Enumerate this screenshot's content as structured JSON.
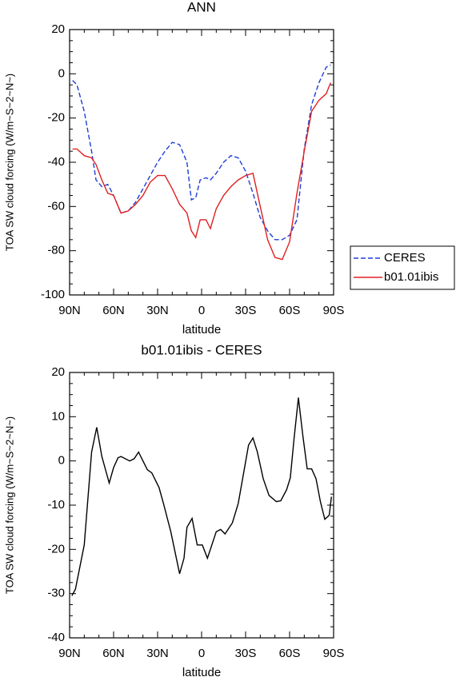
{
  "chart_data": [
    {
      "type": "line",
      "title": "ANN",
      "xlabel": "latitude",
      "ylabel": "TOA SW cloud forcing (W/m~S~2~N~)",
      "x": [
        88,
        85,
        80,
        75,
        72,
        68,
        64,
        60,
        55,
        50,
        45,
        40,
        35,
        30,
        25,
        20,
        15,
        10,
        7,
        4,
        1,
        -3,
        -6,
        -10,
        -15,
        -20,
        -25,
        -30,
        -35,
        -40,
        -45,
        -50,
        -55,
        -60,
        -65,
        -70,
        -75,
        -80,
        -85,
        -88
      ],
      "series": [
        {
          "name": "CERES",
          "color": "#1f3fd6",
          "dash": "dashed",
          "values": [
            -3,
            -5,
            -17,
            -35,
            -48,
            -51,
            -50,
            -55,
            -63,
            -62,
            -58,
            -52,
            -46,
            -40,
            -35,
            -31,
            -32,
            -40,
            -57,
            -56,
            -48,
            -47,
            -48,
            -45,
            -40,
            -37,
            -38,
            -44,
            -54,
            -65,
            -71,
            -75,
            -75,
            -73,
            -66,
            -34,
            -14,
            -4,
            3,
            4
          ]
        },
        {
          "name": "b01.01ibis",
          "color": "#e02020",
          "dash": "solid",
          "values": [
            -34,
            -34,
            -37,
            -38,
            -41,
            -48,
            -54,
            -55,
            -63,
            -62,
            -59,
            -55,
            -49,
            -46,
            -46,
            -52,
            -59,
            -63,
            -71,
            -74,
            -66,
            -66,
            -70,
            -61,
            -55,
            -51,
            -48,
            -46,
            -45,
            -60,
            -75,
            -83,
            -84,
            -76,
            -54,
            -35,
            -17,
            -12,
            -9,
            -4
          ]
        }
      ],
      "xlim": [
        90,
        -90
      ],
      "xticks": [
        {
          "value": 90,
          "label": "90N"
        },
        {
          "value": 60,
          "label": "60N"
        },
        {
          "value": 30,
          "label": "30N"
        },
        0,
        {
          "value": -30,
          "label": "30S"
        },
        {
          "value": -60,
          "label": "60S"
        },
        {
          "value": -90,
          "label": "90S"
        }
      ],
      "ylim": [
        -100,
        20
      ],
      "yticks": [
        20,
        0,
        -20,
        -40,
        -60,
        -80,
        -100
      ],
      "legend": "right"
    },
    {
      "type": "line",
      "title": "b01.01ibis - CERES",
      "xlabel": "latitude",
      "ylabel": "TOA SW cloud forcing (W/m~S~2~N~)",
      "x": [
        88.5,
        86,
        80,
        75,
        71.5,
        68,
        63,
        60,
        57,
        55,
        49,
        46,
        43,
        40,
        37,
        34,
        29,
        26,
        21,
        15,
        12,
        10,
        6.5,
        3,
        -0.5,
        -4,
        -10,
        -13,
        -16,
        -21,
        -25,
        -28,
        -32,
        -35,
        -38,
        -42,
        -46,
        -51,
        -54,
        -58,
        -60.5,
        -63,
        -66,
        -69,
        -72,
        -75,
        -78,
        -81,
        -84,
        -87,
        -88.5
      ],
      "series": [
        {
          "color": "#000000",
          "dash": "solid",
          "values": [
            -30.5,
            -29,
            -19,
            2,
            7.6,
            1,
            -5,
            -1.5,
            0.7,
            1,
            0,
            0.5,
            2,
            0,
            -2,
            -2.7,
            -6,
            -9.6,
            -16,
            -25.5,
            -22,
            -15,
            -13,
            -19,
            -19,
            -22,
            -16,
            -15.5,
            -16.5,
            -14,
            -9.6,
            -4,
            3.6,
            5.2,
            2,
            -4,
            -7.8,
            -9.2,
            -9,
            -6.5,
            -3.8,
            4.9,
            14.3,
            5.8,
            -1.8,
            -1.8,
            -4,
            -9.2,
            -13.2,
            -12.3,
            -8.1
          ]
        }
      ],
      "xlim": [
        90,
        -90
      ],
      "xticks": [
        {
          "value": 90,
          "label": "90N"
        },
        {
          "value": 60,
          "label": "60N"
        },
        {
          "value": 30,
          "label": "30N"
        },
        0,
        {
          "value": -30,
          "label": "30S"
        },
        {
          "value": -60,
          "label": "60S"
        },
        {
          "value": -90,
          "label": "90S"
        }
      ],
      "ylim": [
        -40,
        20
      ],
      "yticks": [
        20,
        10,
        0,
        -10,
        -20,
        -30,
        -40
      ]
    }
  ]
}
